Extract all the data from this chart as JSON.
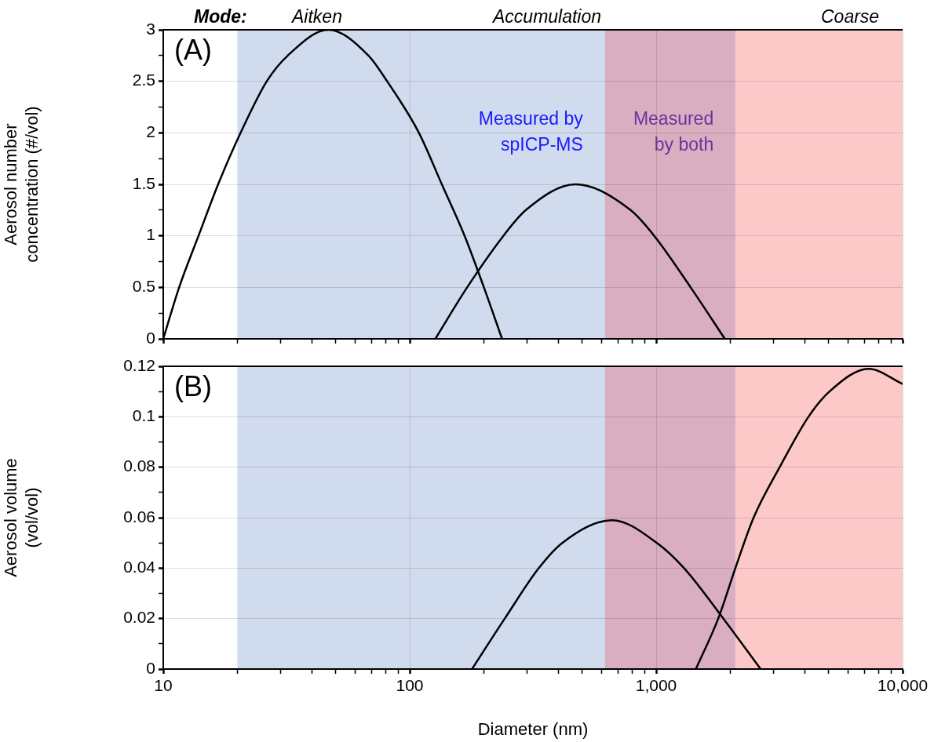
{
  "chart_data": [
    {
      "type": "line",
      "ylabel": "Aerosol number concentration (#/vol)",
      "annotations": [
        "Mode:",
        "Aitken",
        "Accumulation",
        "Coarse",
        "(A)"
      ],
      "series": [
        {
          "color": "#000000",
          "x": [
            10,
            11.6,
            13.9,
            16.7,
            20.6,
            26.3,
            32,
            46.8,
            68,
            81,
            109,
            135,
            167,
            200,
            237
          ],
          "values": [
            0,
            0.5,
            1,
            1.5,
            2,
            2.5,
            2.75,
            3,
            2.75,
            2.5,
            2,
            1.5,
            1,
            0.5,
            0
          ]
        },
        {
          "color": "#000000",
          "x": [
            127,
            171,
            240,
            296,
            470,
            787,
            982,
            1380,
            1900
          ],
          "values": [
            0,
            0.5,
            1,
            1.25,
            1.5,
            1.25,
            1,
            0.5,
            0
          ]
        }
      ],
      "bands": [
        {
          "axis": "x",
          "from": 20,
          "to": 620,
          "color": "#d0dbee",
          "label": "Measured by\nspICP-MS"
        },
        {
          "axis": "x",
          "from": 620,
          "to": 2100,
          "color": "#d8aec0",
          "label": "Measured\nby both"
        },
        {
          "axis": "x",
          "from": 2100,
          "to": 10000,
          "color": "#fdc8c8"
        }
      ],
      "log": "x",
      "xlim": [
        10,
        10000
      ],
      "xticks": [
        {
          "value": 10,
          "label": null
        },
        {
          "value": 20,
          "label": null
        },
        {
          "value": 30,
          "label": null
        },
        {
          "value": 40,
          "label": null
        },
        {
          "value": 50,
          "label": null
        },
        {
          "value": 60,
          "label": null
        },
        {
          "value": 70,
          "label": null
        },
        {
          "value": 80,
          "label": null
        },
        {
          "value": 90,
          "label": null
        },
        {
          "value": 100,
          "label": null
        },
        {
          "value": 200,
          "label": null
        },
        {
          "value": 300,
          "label": null
        },
        {
          "value": 400,
          "label": null
        },
        {
          "value": 500,
          "label": null
        },
        {
          "value": 600,
          "label": null
        },
        {
          "value": 700,
          "label": null
        },
        {
          "value": 800,
          "label": null
        },
        {
          "value": 900,
          "label": null
        },
        {
          "value": 1000,
          "label": null
        },
        {
          "value": 2000,
          "label": null
        },
        {
          "value": 3000,
          "label": null
        },
        {
          "value": 4000,
          "label": null
        },
        {
          "value": 5000,
          "label": null
        },
        {
          "value": 6000,
          "label": null
        },
        {
          "value": 7000,
          "label": null
        },
        {
          "value": 8000,
          "label": null
        },
        {
          "value": 9000,
          "label": null
        },
        {
          "value": 10000,
          "label": null
        }
      ],
      "ylim": [
        0,
        3
      ],
      "yticks": [
        0,
        {
          "value": 0.25,
          "label": null
        },
        0.5,
        {
          "value": 0.75,
          "label": null
        },
        1,
        {
          "value": 1.25,
          "label": null
        },
        1.5,
        {
          "value": 1.75,
          "label": null
        },
        2,
        {
          "value": 2.25,
          "label": null
        },
        2.5,
        {
          "value": 2.75,
          "label": null
        },
        3
      ],
      "grid": true,
      "tick_labels": "y"
    },
    {
      "type": "line",
      "xlabel": "Diameter (nm)",
      "ylabel": "Aerosol volume (vol/vol)",
      "annotations": [
        "(B)"
      ],
      "series": [
        {
          "color": "#000000",
          "x": [
            179,
            243,
            334,
            416,
            663,
            1007,
            1298,
            1874,
            2655
          ],
          "values": [
            0,
            0.02,
            0.04,
            0.05,
            0.059,
            0.05,
            0.04,
            0.02,
            0
          ]
        },
        {
          "color": "#000000",
          "x": [
            1449,
            1786,
            2096,
            2485,
            3170,
            4150,
            5050,
            7280,
            10000
          ],
          "values": [
            0,
            0.02,
            0.04,
            0.06,
            0.08,
            0.1,
            0.11,
            0.119,
            0.113
          ]
        }
      ],
      "bands": [
        {
          "axis": "x",
          "from": 20,
          "to": 620,
          "color": "#d0dbee"
        },
        {
          "axis": "x",
          "from": 620,
          "to": 2100,
          "color": "#d8aec0"
        },
        {
          "axis": "x",
          "from": 2100,
          "to": 10000,
          "color": "#fdc8c8"
        }
      ],
      "log": "x",
      "xlim": [
        10,
        10000
      ],
      "xticks": [
        10,
        {
          "value": 20,
          "label": null
        },
        {
          "value": 30,
          "label": null
        },
        {
          "value": 40,
          "label": null
        },
        {
          "value": 50,
          "label": null
        },
        {
          "value": 60,
          "label": null
        },
        {
          "value": 70,
          "label": null
        },
        {
          "value": 80,
          "label": null
        },
        {
          "value": 90,
          "label": null
        },
        100,
        {
          "value": 200,
          "label": null
        },
        {
          "value": 300,
          "label": null
        },
        {
          "value": 400,
          "label": null
        },
        {
          "value": 500,
          "label": null
        },
        {
          "value": 600,
          "label": null
        },
        {
          "value": 700,
          "label": null
        },
        {
          "value": 800,
          "label": null
        },
        {
          "value": 900,
          "label": null
        },
        {
          "value": 1000,
          "label": "1,000"
        },
        {
          "value": 2000,
          "label": null
        },
        {
          "value": 3000,
          "label": null
        },
        {
          "value": 4000,
          "label": null
        },
        {
          "value": 5000,
          "label": null
        },
        {
          "value": 6000,
          "label": null
        },
        {
          "value": 7000,
          "label": null
        },
        {
          "value": 8000,
          "label": null
        },
        {
          "value": 9000,
          "label": null
        },
        {
          "value": 10000,
          "label": "10,000"
        }
      ],
      "ylim": [
        0,
        0.12
      ],
      "yticks": [
        0,
        {
          "value": 0.01,
          "label": null
        },
        0.02,
        {
          "value": 0.03,
          "label": null
        },
        0.04,
        {
          "value": 0.05,
          "label": null
        },
        0.06,
        {
          "value": 0.07,
          "label": null
        },
        0.08,
        {
          "value": 0.09,
          "label": null
        },
        0.1,
        {
          "value": 0.11,
          "label": null
        },
        0.12
      ],
      "grid": true
    }
  ]
}
